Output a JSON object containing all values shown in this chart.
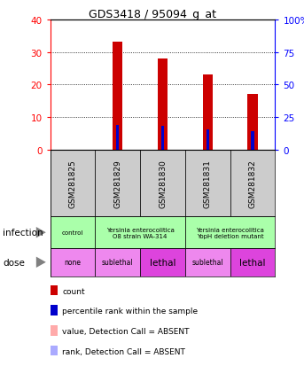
{
  "title": "GDS3418 / 95094_g_at",
  "samples": [
    "GSM281825",
    "GSM281829",
    "GSM281830",
    "GSM281831",
    "GSM281832"
  ],
  "count_values": [
    0,
    33,
    28,
    23,
    17
  ],
  "percentile_values": [
    0,
    19,
    18,
    15.5,
    14
  ],
  "absent": [
    true,
    false,
    false,
    false,
    false
  ],
  "count_color": "#cc0000",
  "count_absent_color": "#ffaaaa",
  "percentile_color": "#0000cc",
  "percentile_absent_color": "#aaaaff",
  "ylim_left": [
    0,
    40
  ],
  "ylim_right": [
    0,
    100
  ],
  "yticks_left": [
    0,
    10,
    20,
    30,
    40
  ],
  "yticks_right": [
    0,
    25,
    50,
    75,
    100
  ],
  "yticklabels_right": [
    "0",
    "25",
    "50",
    "75",
    "100%"
  ],
  "infection_groups": [
    {
      "label": "control",
      "span": [
        0,
        1
      ],
      "color": "#aaffaa"
    },
    {
      "label": "Yersinia enterocolitica\nO8 strain WA-314",
      "span": [
        1,
        3
      ],
      "color": "#aaffaa"
    },
    {
      "label": "Yersinia enterocolitica\nYopH deletion mutant",
      "span": [
        3,
        5
      ],
      "color": "#aaffaa"
    }
  ],
  "dose_groups": [
    {
      "label": "none",
      "span": [
        0,
        1
      ],
      "color": "#ee88ee"
    },
    {
      "label": "sublethal",
      "span": [
        1,
        2
      ],
      "color": "#ee88ee"
    },
    {
      "label": "lethal",
      "span": [
        2,
        3
      ],
      "color": "#dd44dd"
    },
    {
      "label": "sublethal",
      "span": [
        3,
        4
      ],
      "color": "#ee88ee"
    },
    {
      "label": "lethal",
      "span": [
        4,
        5
      ],
      "color": "#dd44dd"
    }
  ],
  "bar_width": 0.22,
  "sample_box_color": "#cccccc",
  "legend_items": [
    {
      "color": "#cc0000",
      "label": "count"
    },
    {
      "color": "#0000cc",
      "label": "percentile rank within the sample"
    },
    {
      "color": "#ffaaaa",
      "label": "value, Detection Call = ABSENT"
    },
    {
      "color": "#aaaaff",
      "label": "rank, Detection Call = ABSENT"
    }
  ]
}
